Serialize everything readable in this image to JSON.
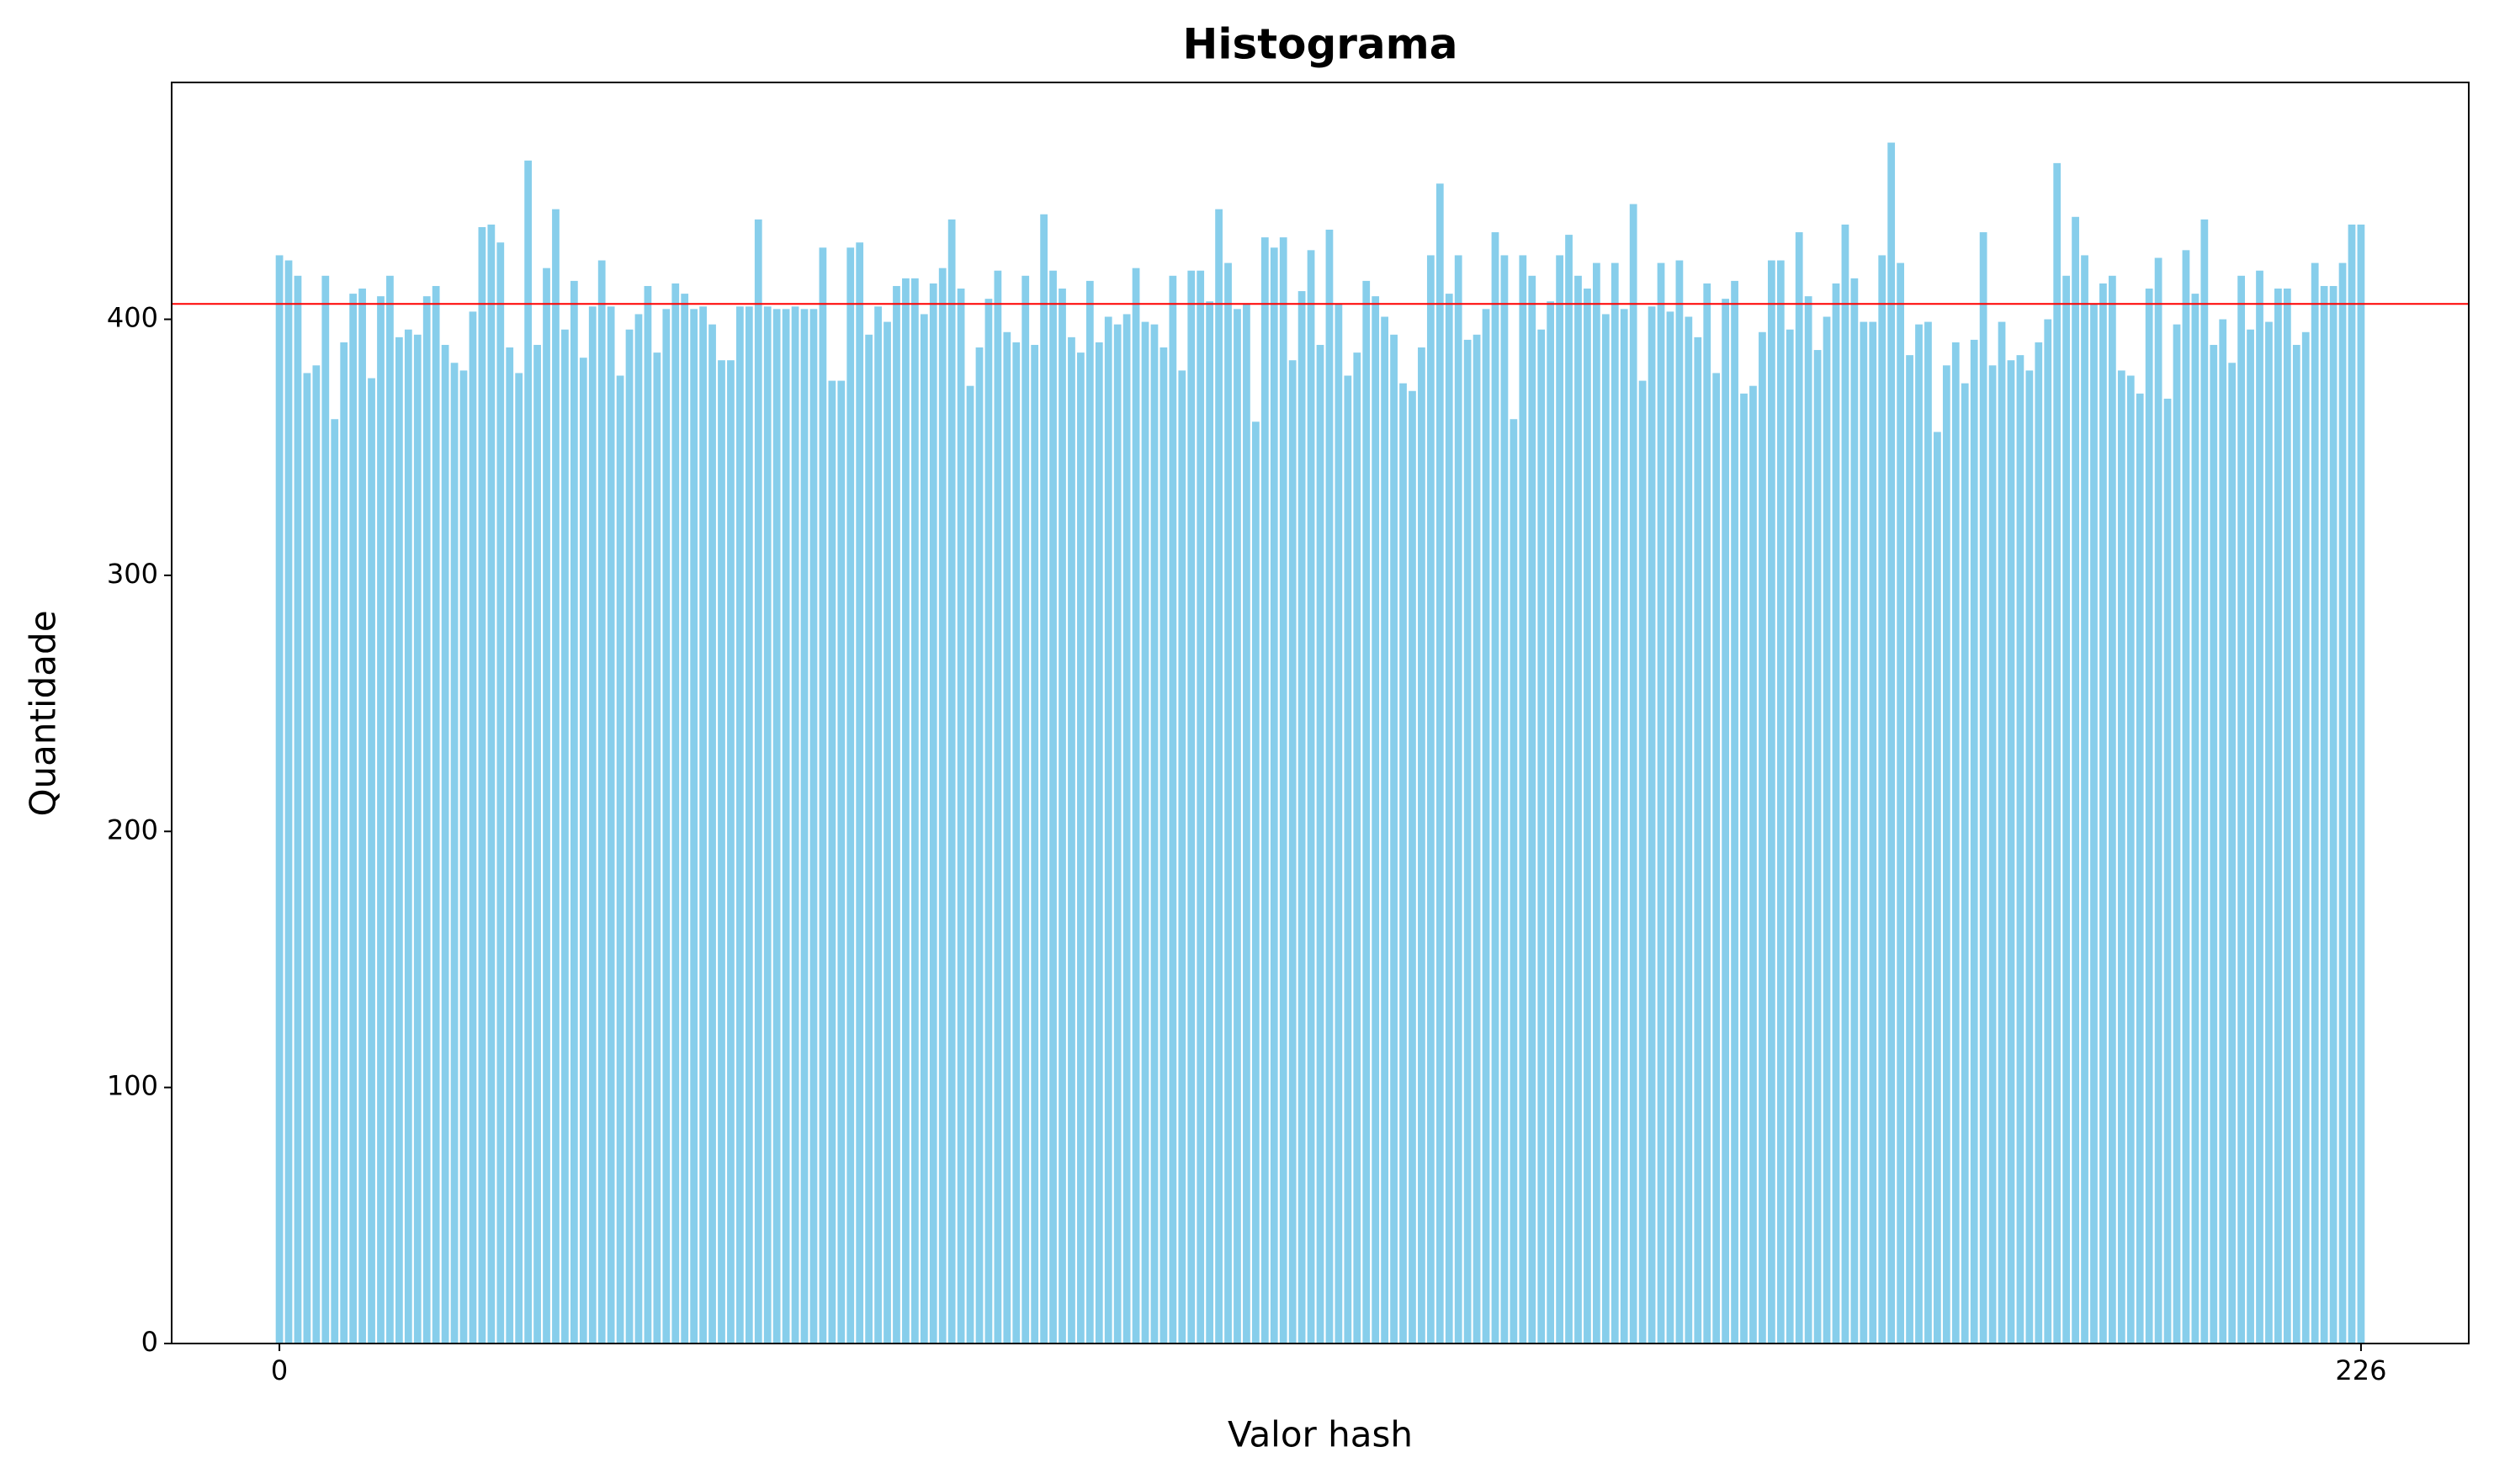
{
  "chart_data": {
    "type": "bar",
    "title": "Histograma",
    "x_label": "Valor hash",
    "y_label": "Quantidade",
    "x": [
      0,
      1,
      2,
      3,
      4,
      5,
      6,
      7,
      8,
      9,
      10,
      11,
      12,
      13,
      14,
      15,
      16,
      17,
      18,
      19,
      20,
      21,
      22,
      23,
      24,
      25,
      26,
      27,
      28,
      29,
      30,
      31,
      32,
      33,
      34,
      35,
      36,
      37,
      38,
      39,
      40,
      41,
      42,
      43,
      44,
      45,
      46,
      47,
      48,
      49,
      50,
      51,
      52,
      53,
      54,
      55,
      56,
      57,
      58,
      59,
      60,
      61,
      62,
      63,
      64,
      65,
      66,
      67,
      68,
      69,
      70,
      71,
      72,
      73,
      74,
      75,
      76,
      77,
      78,
      79,
      80,
      81,
      82,
      83,
      84,
      85,
      86,
      87,
      88,
      89,
      90,
      91,
      92,
      93,
      94,
      95,
      96,
      97,
      98,
      99,
      100,
      101,
      102,
      103,
      104,
      105,
      106,
      107,
      108,
      109,
      110,
      111,
      112,
      113,
      114,
      115,
      116,
      117,
      118,
      119,
      120,
      121,
      122,
      123,
      124,
      125,
      126,
      127,
      128,
      129,
      130,
      131,
      132,
      133,
      134,
      135,
      136,
      137,
      138,
      139,
      140,
      141,
      142,
      143,
      144,
      145,
      146,
      147,
      148,
      149,
      150,
      151,
      152,
      153,
      154,
      155,
      156,
      157,
      158,
      159,
      160,
      161,
      162,
      163,
      164,
      165,
      166,
      167,
      168,
      169,
      170,
      171,
      172,
      173,
      174,
      175,
      176,
      177,
      178,
      179,
      180,
      181,
      182,
      183,
      184,
      185,
      186,
      187,
      188,
      189,
      190,
      191,
      192,
      193,
      194,
      195,
      196,
      197,
      198,
      199,
      200,
      201,
      202,
      203,
      204,
      205,
      206,
      207,
      208,
      209,
      210,
      211,
      212,
      213,
      214,
      215,
      216,
      217,
      218,
      219,
      220,
      221,
      222,
      223,
      224,
      225,
      226
    ],
    "values": [
      425,
      423,
      417,
      379,
      382,
      417,
      361,
      391,
      410,
      412,
      377,
      409,
      417,
      393,
      396,
      394,
      409,
      413,
      390,
      383,
      380,
      403,
      436,
      437,
      430,
      389,
      379,
      462,
      390,
      420,
      443,
      396,
      415,
      385,
      405,
      423,
      405,
      378,
      396,
      402,
      413,
      387,
      404,
      414,
      410,
      404,
      405,
      398,
      384,
      384,
      405,
      405,
      439,
      405,
      404,
      404,
      405,
      404,
      404,
      428,
      376,
      376,
      428,
      430,
      394,
      405,
      399,
      413,
      416,
      416,
      402,
      414,
      420,
      439,
      412,
      374,
      389,
      408,
      419,
      395,
      391,
      417,
      390,
      441,
      419,
      412,
      393,
      387,
      415,
      391,
      401,
      398,
      402,
      420,
      399,
      398,
      389,
      417,
      380,
      419,
      419,
      407,
      443,
      422,
      404,
      406,
      360,
      432,
      428,
      432,
      384,
      411,
      427,
      390,
      435,
      406,
      378,
      387,
      415,
      409,
      401,
      394,
      375,
      372,
      389,
      425,
      453,
      410,
      425,
      392,
      394,
      404,
      434,
      425,
      361,
      425,
      417,
      396,
      407,
      425,
      433,
      417,
      412,
      422,
      402,
      422,
      404,
      445,
      376,
      405,
      422,
      403,
      423,
      401,
      393,
      414,
      379,
      408,
      415,
      371,
      374,
      395,
      423,
      423,
      396,
      434,
      409,
      388,
      401,
      414,
      437,
      416,
      399,
      399,
      425,
      469,
      422,
      386,
      398,
      399,
      356,
      382,
      391,
      375,
      392,
      434,
      382,
      399,
      384,
      386,
      380,
      391,
      400,
      461,
      417,
      440,
      425,
      406,
      414,
      417,
      380,
      378,
      371,
      412,
      424,
      369,
      398,
      427,
      410,
      439,
      390,
      400,
      383,
      417,
      396,
      419,
      399,
      412,
      412,
      390,
      395,
      422,
      413,
      413,
      422,
      437,
      437
    ],
    "color": "#87ceeb",
    "bar_width": 0.8,
    "reference_line": {
      "value": 406,
      "color": "#ff0000"
    },
    "xlim": [
      -11.7,
      237.7
    ],
    "xticks": [
      0,
      226
    ],
    "ylim": [
      0,
      492.5
    ],
    "yticks": [
      0,
      100,
      200,
      300,
      400
    ],
    "grid": false
  }
}
